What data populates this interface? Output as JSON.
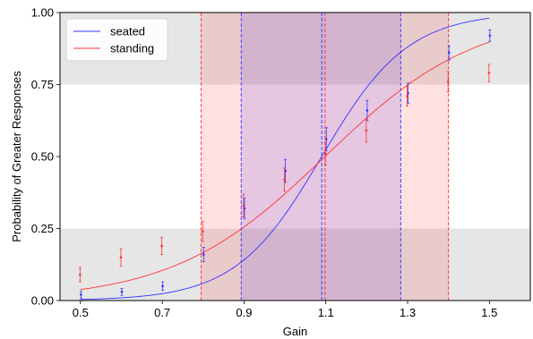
{
  "chart_data": {
    "type": "line",
    "title": "",
    "xlabel": "Gain",
    "ylabel": "Probability of Greater Responses",
    "xlim": [
      0.45,
      1.6
    ],
    "ylim": [
      0.0,
      1.0
    ],
    "xticks": [
      "0.5",
      "0.7",
      "0.9",
      "1.1",
      "1.3",
      "1.5"
    ],
    "yticks": [
      "0.00",
      "0.25",
      "0.50",
      "0.75",
      "1.00"
    ],
    "grid": false,
    "legend": {
      "position": "top-left"
    },
    "shaded_y_bands": [
      {
        "from": 0.0,
        "to": 0.25,
        "color": "#e6e6e6"
      },
      {
        "from": 0.75,
        "to": 1.0,
        "color": "#e6e6e6"
      }
    ],
    "series": [
      {
        "name": "seated",
        "color": "#3333ff",
        "curve_pse": 1.09,
        "curve_slope": 9.5,
        "threshold_lines": [
          0.893,
          1.09,
          1.283
        ],
        "points": [
          {
            "x": 0.5,
            "y": 0.02,
            "err": 0.012
          },
          {
            "x": 0.6,
            "y": 0.03,
            "err": 0.012
          },
          {
            "x": 0.7,
            "y": 0.05,
            "err": 0.015
          },
          {
            "x": 0.8,
            "y": 0.16,
            "err": 0.025
          },
          {
            "x": 0.9,
            "y": 0.32,
            "err": 0.035
          },
          {
            "x": 1.0,
            "y": 0.45,
            "err": 0.04
          },
          {
            "x": 1.1,
            "y": 0.56,
            "err": 0.04
          },
          {
            "x": 1.2,
            "y": 0.66,
            "err": 0.035
          },
          {
            "x": 1.3,
            "y": 0.72,
            "err": 0.035
          },
          {
            "x": 1.4,
            "y": 0.86,
            "err": 0.025
          },
          {
            "x": 1.5,
            "y": 0.92,
            "err": 0.02
          }
        ]
      },
      {
        "name": "standing",
        "color": "#ff3333",
        "curve_pse": 1.098,
        "curve_slope": 5.4,
        "threshold_lines": [
          0.795,
          1.098,
          1.4
        ],
        "points": [
          {
            "x": 0.5,
            "y": 0.09,
            "err": 0.025
          },
          {
            "x": 0.6,
            "y": 0.15,
            "err": 0.03
          },
          {
            "x": 0.7,
            "y": 0.19,
            "err": 0.03
          },
          {
            "x": 0.8,
            "y": 0.24,
            "err": 0.035
          },
          {
            "x": 0.9,
            "y": 0.33,
            "err": 0.04
          },
          {
            "x": 1.0,
            "y": 0.42,
            "err": 0.04
          },
          {
            "x": 1.1,
            "y": 0.51,
            "err": 0.04
          },
          {
            "x": 1.2,
            "y": 0.59,
            "err": 0.04
          },
          {
            "x": 1.3,
            "y": 0.71,
            "err": 0.035
          },
          {
            "x": 1.4,
            "y": 0.76,
            "err": 0.035
          },
          {
            "x": 1.5,
            "y": 0.79,
            "err": 0.03
          }
        ]
      }
    ]
  }
}
